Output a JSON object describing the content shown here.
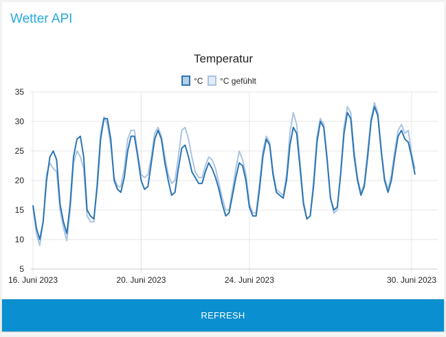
{
  "app": {
    "title": "Wetter API"
  },
  "refresh_label": "REFRESH",
  "colors": {
    "accent": "#29a8e0",
    "button": "#0a8fd0",
    "series_c": "#2b75b3",
    "series_felt": "#a9c4e4"
  },
  "chart_data": {
    "type": "line",
    "title": "Temperatur",
    "xlabel": "",
    "ylabel": "",
    "ylim": [
      5,
      35
    ],
    "yticks": [
      5,
      10,
      15,
      20,
      25,
      30,
      35
    ],
    "xlim": [
      "2023-06-16T00:00",
      "2023-06-30T06:00"
    ],
    "xticks": [
      {
        "value": "2023-06-16T00:00",
        "label": "16. Juni 2023"
      },
      {
        "value": "2023-06-20T00:00",
        "label": "20. Juni 2023"
      },
      {
        "value": "2023-06-24T00:00",
        "label": "24. Juni 2023"
      },
      {
        "value": "2023-06-30T00:00",
        "label": "30. Juni 2023"
      }
    ],
    "grid": true,
    "legend": "top-center",
    "series": [
      {
        "name": "°C",
        "color": "#2b75b3",
        "points": [
          [
            "2023-06-16T00:00",
            15.8
          ],
          [
            "2023-06-16T03:00",
            12
          ],
          [
            "2023-06-16T06:00",
            10
          ],
          [
            "2023-06-16T09:00",
            13
          ],
          [
            "2023-06-16T12:00",
            20
          ],
          [
            "2023-06-16T15:00",
            24
          ],
          [
            "2023-06-16T18:00",
            25
          ],
          [
            "2023-06-16T21:00",
            23.5
          ],
          [
            "2023-06-17T00:00",
            16
          ],
          [
            "2023-06-17T03:00",
            13
          ],
          [
            "2023-06-17T06:00",
            11
          ],
          [
            "2023-06-17T09:00",
            16
          ],
          [
            "2023-06-17T12:00",
            24
          ],
          [
            "2023-06-17T15:00",
            27
          ],
          [
            "2023-06-17T18:00",
            27.5
          ],
          [
            "2023-06-17T21:00",
            24
          ],
          [
            "2023-06-18T00:00",
            15
          ],
          [
            "2023-06-18T03:00",
            14
          ],
          [
            "2023-06-18T06:00",
            13.5
          ],
          [
            "2023-06-18T09:00",
            19
          ],
          [
            "2023-06-18T12:00",
            27
          ],
          [
            "2023-06-18T15:00",
            30.5
          ],
          [
            "2023-06-18T18:00",
            30.5
          ],
          [
            "2023-06-18T21:00",
            27
          ],
          [
            "2023-06-19T00:00",
            20
          ],
          [
            "2023-06-19T03:00",
            18.5
          ],
          [
            "2023-06-19T06:00",
            18
          ],
          [
            "2023-06-19T09:00",
            20.5
          ],
          [
            "2023-06-19T12:00",
            25
          ],
          [
            "2023-06-19T15:00",
            27.5
          ],
          [
            "2023-06-19T18:00",
            27.5
          ],
          [
            "2023-06-19T21:00",
            24
          ],
          [
            "2023-06-20T00:00",
            20
          ],
          [
            "2023-06-20T03:00",
            18.5
          ],
          [
            "2023-06-20T06:00",
            19
          ],
          [
            "2023-06-20T09:00",
            23
          ],
          [
            "2023-06-20T12:00",
            27
          ],
          [
            "2023-06-20T15:00",
            28.5
          ],
          [
            "2023-06-20T18:00",
            27
          ],
          [
            "2023-06-20T21:00",
            23
          ],
          [
            "2023-06-21T00:00",
            20
          ],
          [
            "2023-06-21T03:00",
            17.5
          ],
          [
            "2023-06-21T06:00",
            18
          ],
          [
            "2023-06-21T09:00",
            22
          ],
          [
            "2023-06-21T12:00",
            25.5
          ],
          [
            "2023-06-21T15:00",
            26
          ],
          [
            "2023-06-21T18:00",
            24
          ],
          [
            "2023-06-21T21:00",
            21.5
          ],
          [
            "2023-06-22T00:00",
            20.5
          ],
          [
            "2023-06-22T03:00",
            19.5
          ],
          [
            "2023-06-22T06:00",
            19.5
          ],
          [
            "2023-06-22T09:00",
            21.5
          ],
          [
            "2023-06-22T12:00",
            23
          ],
          [
            "2023-06-22T15:00",
            22
          ],
          [
            "2023-06-22T18:00",
            20.5
          ],
          [
            "2023-06-22T21:00",
            18.5
          ],
          [
            "2023-06-23T00:00",
            16
          ],
          [
            "2023-06-23T03:00",
            14
          ],
          [
            "2023-06-23T06:00",
            14.5
          ],
          [
            "2023-06-23T09:00",
            17.5
          ],
          [
            "2023-06-23T12:00",
            20.5
          ],
          [
            "2023-06-23T15:00",
            23
          ],
          [
            "2023-06-23T18:00",
            22.5
          ],
          [
            "2023-06-23T21:00",
            20
          ],
          [
            "2023-06-24T00:00",
            15.5
          ],
          [
            "2023-06-24T03:00",
            14
          ],
          [
            "2023-06-24T06:00",
            14
          ],
          [
            "2023-06-24T09:00",
            18.5
          ],
          [
            "2023-06-24T12:00",
            24
          ],
          [
            "2023-06-24T15:00",
            27
          ],
          [
            "2023-06-24T18:00",
            26
          ],
          [
            "2023-06-24T21:00",
            21
          ],
          [
            "2023-06-25T00:00",
            18
          ],
          [
            "2023-06-25T03:00",
            17.5
          ],
          [
            "2023-06-25T06:00",
            17
          ],
          [
            "2023-06-25T09:00",
            20
          ],
          [
            "2023-06-25T12:00",
            26
          ],
          [
            "2023-06-25T15:00",
            29
          ],
          [
            "2023-06-25T18:00",
            28
          ],
          [
            "2023-06-25T21:00",
            22
          ],
          [
            "2023-06-26T00:00",
            16
          ],
          [
            "2023-06-26T03:00",
            13.5
          ],
          [
            "2023-06-26T06:00",
            14
          ],
          [
            "2023-06-26T09:00",
            19
          ],
          [
            "2023-06-26T12:00",
            26.5
          ],
          [
            "2023-06-26T15:00",
            30
          ],
          [
            "2023-06-26T18:00",
            29
          ],
          [
            "2023-06-26T21:00",
            23.5
          ],
          [
            "2023-06-27T00:00",
            17
          ],
          [
            "2023-06-27T03:00",
            15
          ],
          [
            "2023-06-27T06:00",
            15.5
          ],
          [
            "2023-06-27T09:00",
            21
          ],
          [
            "2023-06-27T12:00",
            28
          ],
          [
            "2023-06-27T15:00",
            31.5
          ],
          [
            "2023-06-27T18:00",
            30.5
          ],
          [
            "2023-06-27T21:00",
            24
          ],
          [
            "2023-06-28T00:00",
            20
          ],
          [
            "2023-06-28T03:00",
            17.5
          ],
          [
            "2023-06-28T06:00",
            19
          ],
          [
            "2023-06-28T09:00",
            24
          ],
          [
            "2023-06-28T12:00",
            30
          ],
          [
            "2023-06-28T15:00",
            32.5
          ],
          [
            "2023-06-28T18:00",
            31
          ],
          [
            "2023-06-28T21:00",
            25
          ],
          [
            "2023-06-29T00:00",
            20
          ],
          [
            "2023-06-29T03:00",
            18
          ],
          [
            "2023-06-29T06:00",
            20
          ],
          [
            "2023-06-29T09:00",
            24
          ],
          [
            "2023-06-29T12:00",
            27.5
          ],
          [
            "2023-06-29T15:00",
            28.5
          ],
          [
            "2023-06-29T18:00",
            27
          ],
          [
            "2023-06-29T21:00",
            26.5
          ],
          [
            "2023-06-30T00:00",
            24
          ],
          [
            "2023-06-30T03:00",
            21
          ]
        ]
      },
      {
        "name": "°C gefühlt",
        "color": "#a9c4e4",
        "points": [
          [
            "2023-06-16T00:00",
            15.5
          ],
          [
            "2023-06-16T03:00",
            11
          ],
          [
            "2023-06-16T06:00",
            9
          ],
          [
            "2023-06-16T09:00",
            13
          ],
          [
            "2023-06-16T12:00",
            21
          ],
          [
            "2023-06-16T15:00",
            23
          ],
          [
            "2023-06-16T18:00",
            22
          ],
          [
            "2023-06-16T21:00",
            21.5
          ],
          [
            "2023-06-17T00:00",
            15
          ],
          [
            "2023-06-17T03:00",
            12
          ],
          [
            "2023-06-17T06:00",
            9.8
          ],
          [
            "2023-06-17T09:00",
            15
          ],
          [
            "2023-06-17T12:00",
            23
          ],
          [
            "2023-06-17T15:00",
            25
          ],
          [
            "2023-06-17T18:00",
            24
          ],
          [
            "2023-06-17T21:00",
            22
          ],
          [
            "2023-06-18T00:00",
            14
          ],
          [
            "2023-06-18T03:00",
            13
          ],
          [
            "2023-06-18T06:00",
            13
          ],
          [
            "2023-06-18T09:00",
            20
          ],
          [
            "2023-06-18T12:00",
            28
          ],
          [
            "2023-06-18T15:00",
            30.8
          ],
          [
            "2023-06-18T18:00",
            29.5
          ],
          [
            "2023-06-18T21:00",
            26
          ],
          [
            "2023-06-19T00:00",
            20.5
          ],
          [
            "2023-06-19T03:00",
            19
          ],
          [
            "2023-06-19T06:00",
            19
          ],
          [
            "2023-06-19T09:00",
            22
          ],
          [
            "2023-06-19T12:00",
            27
          ],
          [
            "2023-06-19T15:00",
            28.5
          ],
          [
            "2023-06-19T18:00",
            28.5
          ],
          [
            "2023-06-19T21:00",
            24.5
          ],
          [
            "2023-06-20T00:00",
            21
          ],
          [
            "2023-06-20T03:00",
            20.5
          ],
          [
            "2023-06-20T06:00",
            21
          ],
          [
            "2023-06-20T09:00",
            24
          ],
          [
            "2023-06-20T12:00",
            28
          ],
          [
            "2023-06-20T15:00",
            29
          ],
          [
            "2023-06-20T18:00",
            27.5
          ],
          [
            "2023-06-20T21:00",
            24
          ],
          [
            "2023-06-21T00:00",
            21
          ],
          [
            "2023-06-21T03:00",
            19.5
          ],
          [
            "2023-06-21T06:00",
            20
          ],
          [
            "2023-06-21T09:00",
            24
          ],
          [
            "2023-06-21T12:00",
            28.5
          ],
          [
            "2023-06-21T15:00",
            29
          ],
          [
            "2023-06-21T18:00",
            27
          ],
          [
            "2023-06-21T21:00",
            24
          ],
          [
            "2023-06-22T00:00",
            21.5
          ],
          [
            "2023-06-22T03:00",
            20.5
          ],
          [
            "2023-06-22T06:00",
            20.5
          ],
          [
            "2023-06-22T09:00",
            22.5
          ],
          [
            "2023-06-22T12:00",
            24
          ],
          [
            "2023-06-22T15:00",
            23.5
          ],
          [
            "2023-06-22T18:00",
            22
          ],
          [
            "2023-06-22T21:00",
            19.5
          ],
          [
            "2023-06-23T00:00",
            17
          ],
          [
            "2023-06-23T03:00",
            15
          ],
          [
            "2023-06-23T06:00",
            15
          ],
          [
            "2023-06-23T09:00",
            18.5
          ],
          [
            "2023-06-23T12:00",
            22
          ],
          [
            "2023-06-23T15:00",
            25
          ],
          [
            "2023-06-23T18:00",
            23.5
          ],
          [
            "2023-06-23T21:00",
            21
          ],
          [
            "2023-06-24T00:00",
            16
          ],
          [
            "2023-06-24T03:00",
            14.5
          ],
          [
            "2023-06-24T06:00",
            14.5
          ],
          [
            "2023-06-24T09:00",
            19.5
          ],
          [
            "2023-06-24T12:00",
            25
          ],
          [
            "2023-06-24T15:00",
            27.5
          ],
          [
            "2023-06-24T18:00",
            26.5
          ],
          [
            "2023-06-24T21:00",
            21.5
          ],
          [
            "2023-06-25T00:00",
            18.5
          ],
          [
            "2023-06-25T03:00",
            18
          ],
          [
            "2023-06-25T06:00",
            17.5
          ],
          [
            "2023-06-25T09:00",
            21
          ],
          [
            "2023-06-25T12:00",
            28
          ],
          [
            "2023-06-25T15:00",
            31.5
          ],
          [
            "2023-06-25T18:00",
            29.5
          ],
          [
            "2023-06-25T21:00",
            23
          ],
          [
            "2023-06-26T00:00",
            16.5
          ],
          [
            "2023-06-26T03:00",
            13.5
          ],
          [
            "2023-06-26T06:00",
            14
          ],
          [
            "2023-06-26T09:00",
            20
          ],
          [
            "2023-06-26T12:00",
            27.5
          ],
          [
            "2023-06-26T15:00",
            30.5
          ],
          [
            "2023-06-26T18:00",
            29.5
          ],
          [
            "2023-06-26T21:00",
            24
          ],
          [
            "2023-06-27T00:00",
            17
          ],
          [
            "2023-06-27T03:00",
            14.5
          ],
          [
            "2023-06-27T06:00",
            15
          ],
          [
            "2023-06-27T09:00",
            21.5
          ],
          [
            "2023-06-27T12:00",
            29
          ],
          [
            "2023-06-27T15:00",
            32.5
          ],
          [
            "2023-06-27T18:00",
            31.5
          ],
          [
            "2023-06-27T21:00",
            25
          ],
          [
            "2023-06-28T00:00",
            20.5
          ],
          [
            "2023-06-28T03:00",
            18
          ],
          [
            "2023-06-28T06:00",
            19.5
          ],
          [
            "2023-06-28T09:00",
            25
          ],
          [
            "2023-06-28T12:00",
            30.5
          ],
          [
            "2023-06-28T15:00",
            33.2
          ],
          [
            "2023-06-28T18:00",
            31.5
          ],
          [
            "2023-06-28T21:00",
            25.5
          ],
          [
            "2023-06-29T00:00",
            20.5
          ],
          [
            "2023-06-29T03:00",
            18.5
          ],
          [
            "2023-06-29T06:00",
            21
          ],
          [
            "2023-06-29T09:00",
            25
          ],
          [
            "2023-06-29T12:00",
            28.5
          ],
          [
            "2023-06-29T15:00",
            29.5
          ],
          [
            "2023-06-29T18:00",
            28
          ],
          [
            "2023-06-29T21:00",
            28.5
          ],
          [
            "2023-06-30T00:00",
            24.5
          ],
          [
            "2023-06-30T03:00",
            22
          ]
        ]
      }
    ]
  }
}
